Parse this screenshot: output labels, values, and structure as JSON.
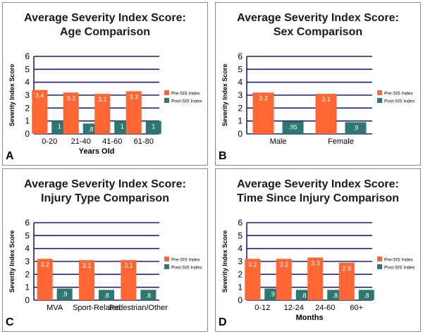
{
  "legend": {
    "pre_label": "Pre-SIS Index",
    "post_label": "Post-SIS Index",
    "pre_color": "#ff6633",
    "post_color": "#2e7670"
  },
  "chart_data": [
    {
      "type": "bar",
      "panel": "A",
      "title_line1": "Average Severity Index Score:",
      "title_line2": "Age Comparison",
      "xlabel": "Years Old",
      "ylabel": "Severity Index Score",
      "ylim": [
        0,
        6
      ],
      "yticks": [
        "0",
        "1",
        "2",
        "3",
        "4",
        "5",
        "6"
      ],
      "categories": [
        "0-20",
        "21-40",
        "41-60",
        "61-80"
      ],
      "series": [
        {
          "name": "Pre-SIS Index",
          "values": [
            3.4,
            3.2,
            3.1,
            3.3
          ],
          "labels": [
            "3.4",
            "3.2",
            "3.1",
            "3.3"
          ]
        },
        {
          "name": "Post-SIS Index",
          "values": [
            1,
            0.8,
            1,
            1
          ],
          "labels": [
            "1",
            ".8",
            "1",
            "1"
          ]
        }
      ],
      "legend_position": "right",
      "grid": true
    },
    {
      "type": "bar",
      "panel": "B",
      "title_line1": "Average Severity Index Score:",
      "title_line2": "Sex Comparison",
      "xlabel": "",
      "ylabel": "Severity Index Score",
      "ylim": [
        0,
        6
      ],
      "yticks": [
        "0",
        "1",
        "2",
        "3",
        "4",
        "5",
        "6"
      ],
      "categories": [
        "Male",
        "Female"
      ],
      "series": [
        {
          "name": "Pre-SIS Index",
          "values": [
            3.2,
            3.1
          ],
          "labels": [
            "3.2",
            "3.1"
          ]
        },
        {
          "name": "Post-SIS Index",
          "values": [
            0.95,
            0.9
          ],
          "labels": [
            ".95",
            ".9"
          ]
        }
      ],
      "legend_position": "right",
      "grid": true
    },
    {
      "type": "bar",
      "panel": "C",
      "title_line1": "Average Severity Index Score:",
      "title_line2": "Injury Type Comparison",
      "xlabel": "",
      "ylabel": "Severity Index Score",
      "ylim": [
        0,
        6
      ],
      "yticks": [
        "0",
        "1",
        "2",
        "3",
        "4",
        "5",
        "6"
      ],
      "categories": [
        "MVA",
        "Sport-Related",
        "Pedestrian/Other"
      ],
      "series": [
        {
          "name": "Pre-SIS Index",
          "values": [
            3.2,
            3.1,
            3.1
          ],
          "labels": [
            "3.2",
            "3.1",
            "3.1"
          ]
        },
        {
          "name": "Post-SIS Index",
          "values": [
            0.9,
            0.8,
            0.8
          ],
          "labels": [
            ".9",
            ".8",
            ".8"
          ]
        }
      ],
      "legend_position": "right",
      "grid": true
    },
    {
      "type": "bar",
      "panel": "D",
      "title_line1": "Average Severity Index Score:",
      "title_line2": "Time Since Injury Comparison",
      "xlabel": "Months",
      "ylabel": "Severity Index Score",
      "ylim": [
        0,
        6
      ],
      "yticks": [
        "0",
        "1",
        "2",
        "3",
        "4",
        "5",
        "6"
      ],
      "categories": [
        "0-12",
        "12-24",
        "24-60",
        "60+"
      ],
      "series": [
        {
          "name": "Pre-SIS Index",
          "values": [
            3.2,
            3.2,
            3.3,
            2.9
          ],
          "labels": [
            "3.2",
            "3.2",
            "3.3",
            "2.9"
          ]
        },
        {
          "name": "Post-SIS Index",
          "values": [
            0.9,
            0.8,
            0.8,
            0.8
          ],
          "labels": [
            ".9",
            ".8",
            ".8",
            ".8"
          ]
        }
      ],
      "legend_position": "right",
      "grid": true
    }
  ]
}
